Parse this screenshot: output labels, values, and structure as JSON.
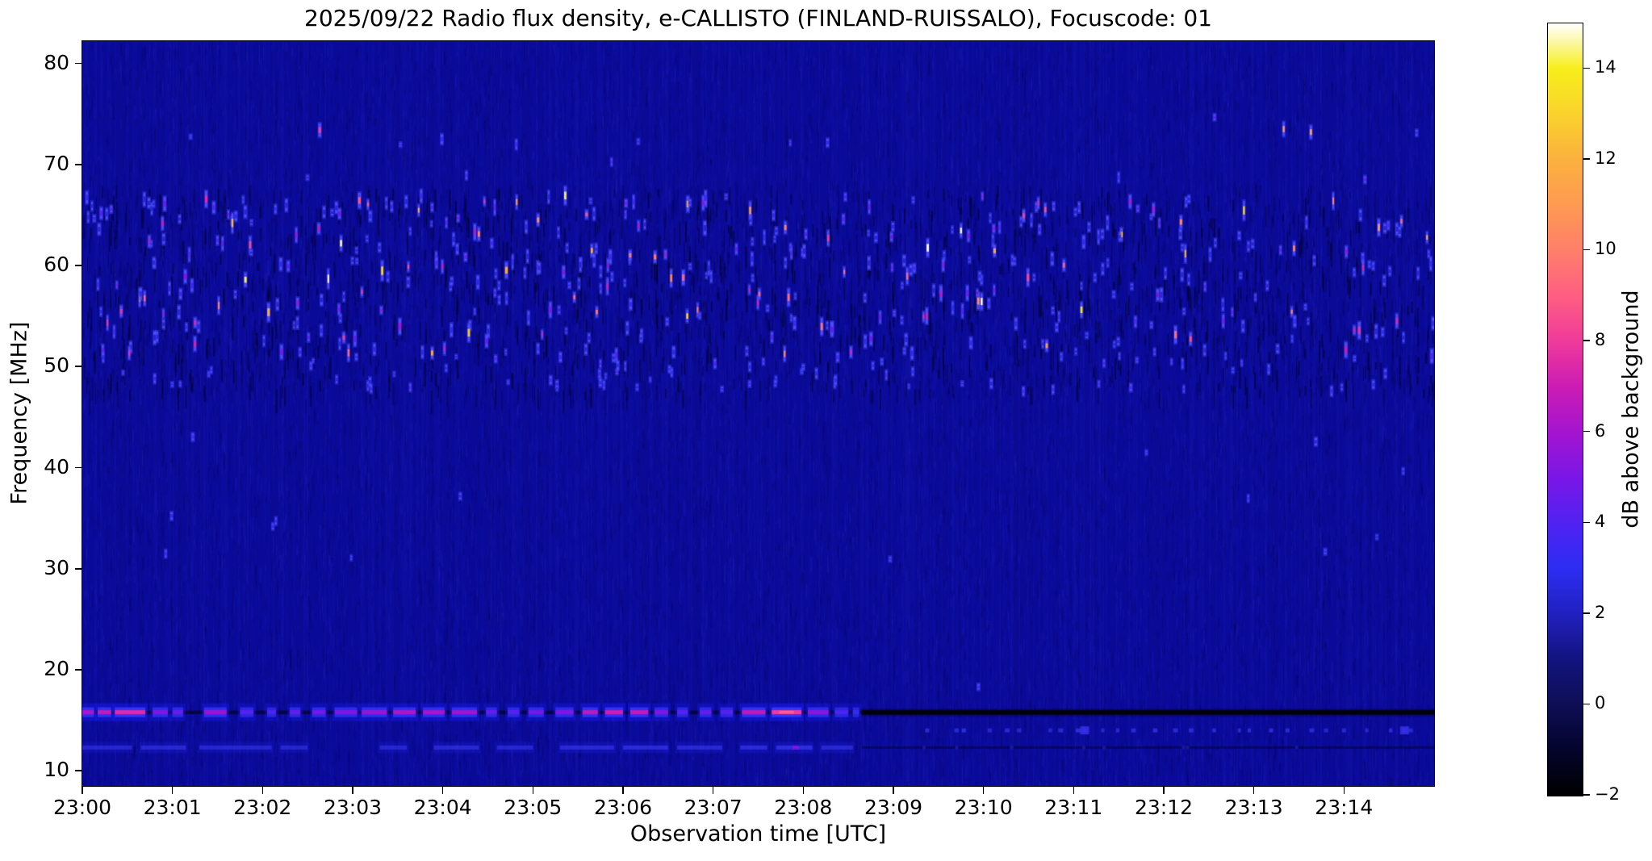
{
  "chart_data": {
    "type": "heatmap",
    "subtype": "radio-spectrogram",
    "title": "2025/09/22  Radio flux density, e-CALLISTO (FINLAND-RUISSALO), Focuscode: 01",
    "date": "2025/09/22",
    "instrument": "e-CALLISTO",
    "station": "FINLAND-RUISSALO",
    "focuscode": "01",
    "xlabel": "Observation time [UTC]",
    "ylabel": "Frequency [MHz]",
    "x_axis": {
      "start": "23:00",
      "end": "23:15",
      "span_minutes": 15,
      "tick_labels": [
        "23:00",
        "23:01",
        "23:02",
        "23:03",
        "23:04",
        "23:05",
        "23:06",
        "23:07",
        "23:08",
        "23:09",
        "23:10",
        "23:11",
        "23:12",
        "23:13",
        "23:14"
      ]
    },
    "y_axis": {
      "ticks": [
        80,
        70,
        60,
        50,
        40,
        30,
        20,
        10
      ],
      "range_mhz": [
        8.5,
        82.2
      ]
    },
    "colorbar": {
      "label": "dB above background",
      "range_db": [
        -2,
        15
      ],
      "ticks": [
        {
          "v": 14,
          "label": "14"
        },
        {
          "v": 12,
          "label": "12"
        },
        {
          "v": 10,
          "label": "10"
        },
        {
          "v": 8,
          "label": "8"
        },
        {
          "v": 6,
          "label": "6"
        },
        {
          "v": 4,
          "label": "4"
        },
        {
          "v": 2,
          "label": "2"
        },
        {
          "v": 0,
          "label": "0"
        },
        {
          "v": -2,
          "label": "−2"
        }
      ],
      "colormap_stops": [
        [
          -2,
          "#000000"
        ],
        [
          -1,
          "#04042c"
        ],
        [
          0,
          "#0e0e55"
        ],
        [
          1,
          "#13137f"
        ],
        [
          2,
          "#2020c0"
        ],
        [
          3,
          "#2d2df2"
        ],
        [
          4,
          "#5022f2"
        ],
        [
          5,
          "#7a16e6"
        ],
        [
          6,
          "#a414cf"
        ],
        [
          7,
          "#cc1cb4"
        ],
        [
          8,
          "#ef3a9b"
        ],
        [
          9,
          "#ff5e82"
        ],
        [
          10,
          "#ff7f6a"
        ],
        [
          11,
          "#fe9a52"
        ],
        [
          12,
          "#fbb13e"
        ],
        [
          13,
          "#f9d22c"
        ],
        [
          14,
          "#f7ee1b"
        ],
        [
          14.6,
          "#fcf8a6"
        ],
        [
          15,
          "#ffffff"
        ]
      ]
    },
    "background": {
      "color": "#0b0b9b",
      "value_db": 1.2
    },
    "features": {
      "speckle_noise_band": {
        "comment": "dense field of short vertical RFI bursts",
        "freq_range_mhz": [
          51,
          67
        ],
        "count": 430,
        "faint_lower_skirt_mhz": [
          47.5,
          51
        ],
        "faint_lower_count": 75,
        "faint_upper_mhz": [
          67,
          75
        ],
        "faint_upper_count": 14,
        "sparse_mid_mhz": [
          30,
          46
        ],
        "sparse_mid_count": 14
      },
      "high_freq_bursts": [
        {
          "t_min": 2.62,
          "f_mhz": 73.4,
          "db": 8
        },
        {
          "t_min": 13.32,
          "f_mhz": 73.5,
          "db": 11
        },
        {
          "t_min": 13.62,
          "f_mhz": 73.2,
          "db": 11
        }
      ],
      "rfi_band_16mhz": {
        "freq_mhz": 15.8,
        "dark_line_after_min": 8.65,
        "segments": [
          [
            0.0,
            0.13,
            0.7
          ],
          [
            0.17,
            0.32,
            0.8
          ],
          [
            0.36,
            0.7,
            0.92
          ],
          [
            0.78,
            0.95,
            0.55
          ],
          [
            1.0,
            1.12,
            0.45
          ],
          [
            1.35,
            1.6,
            0.65
          ],
          [
            1.75,
            1.9,
            0.4
          ],
          [
            2.05,
            2.15,
            0.35
          ],
          [
            2.3,
            2.42,
            0.45
          ],
          [
            2.55,
            2.7,
            0.5
          ],
          [
            2.8,
            3.05,
            0.55
          ],
          [
            3.1,
            3.38,
            0.65
          ],
          [
            3.45,
            3.7,
            0.72
          ],
          [
            3.78,
            4.02,
            0.7
          ],
          [
            4.1,
            4.38,
            0.68
          ],
          [
            4.48,
            4.6,
            0.45
          ],
          [
            4.72,
            4.85,
            0.4
          ],
          [
            4.95,
            5.12,
            0.5
          ],
          [
            5.25,
            5.45,
            0.55
          ],
          [
            5.55,
            5.72,
            0.78
          ],
          [
            5.8,
            6.0,
            0.85
          ],
          [
            6.08,
            6.28,
            0.8
          ],
          [
            6.35,
            6.5,
            0.55
          ],
          [
            6.6,
            6.72,
            0.4
          ],
          [
            6.85,
            6.98,
            0.45
          ],
          [
            7.08,
            7.22,
            0.4
          ],
          [
            7.32,
            7.58,
            0.78
          ],
          [
            7.65,
            7.98,
            1.0
          ],
          [
            8.05,
            8.28,
            0.6
          ],
          [
            8.35,
            8.5,
            0.35
          ],
          [
            8.55,
            8.62,
            0.25
          ]
        ],
        "peak": {
          "t_min": 7.8,
          "db": 9
        }
      },
      "rfi_band_12mhz": {
        "freq_mhz": 12.3,
        "segments": [
          [
            0.0,
            0.55,
            0.3
          ],
          [
            0.65,
            1.15,
            0.35
          ],
          [
            1.3,
            2.1,
            0.3
          ],
          [
            2.2,
            2.5,
            0.25
          ],
          [
            3.3,
            3.6,
            0.3
          ],
          [
            3.9,
            4.4,
            0.35
          ],
          [
            4.6,
            5.0,
            0.3
          ],
          [
            5.3,
            5.9,
            0.4
          ],
          [
            6.0,
            6.5,
            0.45
          ],
          [
            6.6,
            7.1,
            0.4
          ],
          [
            7.3,
            7.6,
            0.45
          ],
          [
            7.7,
            8.1,
            0.55
          ],
          [
            8.2,
            8.55,
            0.35
          ]
        ],
        "faint_dark_line_after_min": 8.65
      },
      "dot_row_14mhz": {
        "freq_mhz": 14.0,
        "t_range_min": [
          9.4,
          14.85
        ],
        "count": 26,
        "bright_dots_t_min": [
          11.1,
          14.65
        ]
      },
      "minor_points": [
        {
          "t_min": 9.93,
          "f_mhz": 18.3,
          "db": 3.5
        }
      ]
    },
    "render_seed": 42
  }
}
